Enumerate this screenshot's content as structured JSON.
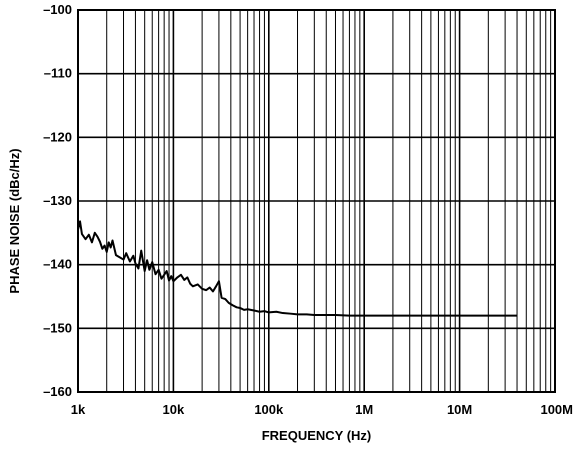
{
  "chart_data": {
    "type": "line",
    "title": "",
    "xlabel": "FREQUENCY (Hz)",
    "ylabel": "PHASE NOISE (dBc/Hz)",
    "xscale": "log",
    "xlim": [
      1000,
      100000000
    ],
    "ylim": [
      -160,
      -100
    ],
    "grid": true,
    "x_ticks": [
      {
        "value": 1000,
        "label": "1k"
      },
      {
        "value": 10000,
        "label": "10k"
      },
      {
        "value": 100000,
        "label": "100k"
      },
      {
        "value": 1000000,
        "label": "1M"
      },
      {
        "value": 10000000,
        "label": "10M"
      },
      {
        "value": 100000000,
        "label": "100M"
      }
    ],
    "y_ticks": [
      {
        "value": -100,
        "label": "–100"
      },
      {
        "value": -110,
        "label": "–110"
      },
      {
        "value": -120,
        "label": "–120"
      },
      {
        "value": -130,
        "label": "–130"
      },
      {
        "value": -140,
        "label": "–140"
      },
      {
        "value": -150,
        "label": "–150"
      },
      {
        "value": -160,
        "label": "–160"
      }
    ],
    "series": [
      {
        "color": "#000000",
        "points": [
          [
            1000,
            -134.5
          ],
          [
            1050,
            -133.2
          ],
          [
            1100,
            -135.2
          ],
          [
            1200,
            -136.0
          ],
          [
            1300,
            -135.3
          ],
          [
            1400,
            -136.5
          ],
          [
            1500,
            -135.0
          ],
          [
            1600,
            -135.6
          ],
          [
            1700,
            -136.4
          ],
          [
            1800,
            -137.5
          ],
          [
            1900,
            -137.0
          ],
          [
            2000,
            -138.0
          ],
          [
            2100,
            -136.5
          ],
          [
            2200,
            -137.3
          ],
          [
            2300,
            -136.2
          ],
          [
            2500,
            -138.5
          ],
          [
            2700,
            -138.8
          ],
          [
            3000,
            -139.2
          ],
          [
            3200,
            -138.2
          ],
          [
            3500,
            -139.5
          ],
          [
            3800,
            -138.6
          ],
          [
            4000,
            -139.8
          ],
          [
            4300,
            -140.6
          ],
          [
            4600,
            -137.8
          ],
          [
            5000,
            -141.0
          ],
          [
            5300,
            -139.3
          ],
          [
            5600,
            -140.8
          ],
          [
            6000,
            -139.6
          ],
          [
            6500,
            -141.5
          ],
          [
            7000,
            -140.8
          ],
          [
            7500,
            -142.2
          ],
          [
            8000,
            -141.6
          ],
          [
            8500,
            -141.0
          ],
          [
            9000,
            -142.5
          ],
          [
            9500,
            -141.8
          ],
          [
            10000,
            -142.6
          ],
          [
            11000,
            -142.0
          ],
          [
            12000,
            -141.6
          ],
          [
            13000,
            -142.4
          ],
          [
            14000,
            -142.0
          ],
          [
            15000,
            -143.0
          ],
          [
            16000,
            -143.4
          ],
          [
            18000,
            -143.1
          ],
          [
            20000,
            -143.8
          ],
          [
            22000,
            -144.0
          ],
          [
            24000,
            -143.6
          ],
          [
            26000,
            -144.2
          ],
          [
            28000,
            -143.4
          ],
          [
            30000,
            -142.6
          ],
          [
            32000,
            -145.2
          ],
          [
            35000,
            -145.4
          ],
          [
            38000,
            -146.0
          ],
          [
            42000,
            -146.4
          ],
          [
            46000,
            -146.7
          ],
          [
            50000,
            -146.8
          ],
          [
            55000,
            -147.1
          ],
          [
            60000,
            -147.0
          ],
          [
            70000,
            -147.2
          ],
          [
            80000,
            -147.4
          ],
          [
            90000,
            -147.3
          ],
          [
            100000,
            -147.5
          ],
          [
            120000,
            -147.4
          ],
          [
            140000,
            -147.6
          ],
          [
            170000,
            -147.7
          ],
          [
            200000,
            -147.8
          ],
          [
            250000,
            -147.8
          ],
          [
            300000,
            -147.9
          ],
          [
            400000,
            -147.9
          ],
          [
            500000,
            -147.9
          ],
          [
            700000,
            -148.0
          ],
          [
            1000000,
            -148.0
          ],
          [
            1500000,
            -148.0
          ],
          [
            2000000,
            -148.0
          ],
          [
            3000000,
            -148.0
          ],
          [
            5000000,
            -148.0
          ],
          [
            7000000,
            -148.0
          ],
          [
            10000000,
            -148.0
          ],
          [
            15000000,
            -148.0
          ],
          [
            20000000,
            -148.0
          ],
          [
            30000000,
            -148.0
          ],
          [
            40000000,
            -148.0
          ]
        ]
      }
    ]
  }
}
